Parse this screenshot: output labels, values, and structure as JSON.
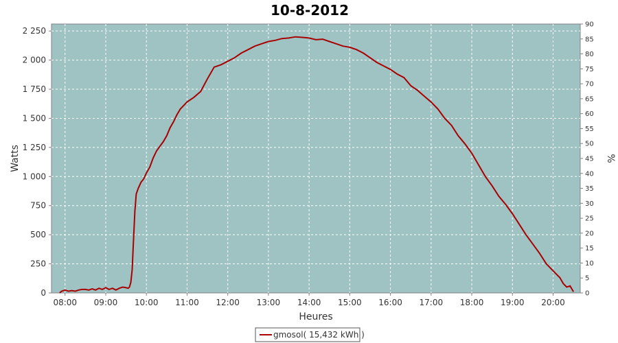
{
  "chart_data": {
    "type": "line",
    "title": "10-8-2012",
    "xlabel": "Heures",
    "ylabel": "Watts",
    "y2label": "%",
    "xticks": [
      "08:00",
      "09:00",
      "10:00",
      "11:00",
      "12:00",
      "13:00",
      "14:00",
      "15:00",
      "16:00",
      "17:00",
      "18:00",
      "19:00",
      "20:00"
    ],
    "yticks": [
      "0",
      "250",
      "500",
      "750",
      "1 000",
      "1 250",
      "1 500",
      "1 750",
      "2 000",
      "2 250"
    ],
    "y2ticks": [
      "0",
      "5",
      "10",
      "15",
      "20",
      "25",
      "30",
      "35",
      "40",
      "45",
      "50",
      "55",
      "60",
      "65",
      "70",
      "75",
      "80",
      "85",
      "90"
    ],
    "xlim": [
      "07:40",
      "20:40"
    ],
    "ylim": [
      0,
      2310
    ],
    "y2lim": [
      0,
      90
    ],
    "grid": true,
    "background_color": "#9fc3c3",
    "line_color": "#a80000",
    "legend_position": "bottom-center",
    "series": [
      {
        "name": "gmosol( 15,432 kWh )",
        "x": [
          "07:52",
          "07:55",
          "08:00",
          "08:05",
          "08:10",
          "08:15",
          "08:20",
          "08:25",
          "08:30",
          "08:35",
          "08:40",
          "08:45",
          "08:50",
          "08:55",
          "09:00",
          "09:05",
          "09:10",
          "09:15",
          "09:20",
          "09:25",
          "09:30",
          "09:33",
          "09:35",
          "09:37",
          "09:39",
          "09:41",
          "09:43",
          "09:45",
          "09:48",
          "09:52",
          "09:56",
          "10:00",
          "10:05",
          "10:10",
          "10:15",
          "10:20",
          "10:25",
          "10:30",
          "10:35",
          "10:40",
          "10:45",
          "10:50",
          "10:55",
          "11:00",
          "11:10",
          "11:20",
          "11:30",
          "11:40",
          "11:50",
          "12:00",
          "12:10",
          "12:20",
          "12:30",
          "12:40",
          "12:50",
          "13:00",
          "13:10",
          "13:20",
          "13:30",
          "13:40",
          "13:50",
          "14:00",
          "14:10",
          "14:20",
          "14:30",
          "14:40",
          "14:50",
          "15:00",
          "15:10",
          "15:20",
          "15:30",
          "15:40",
          "15:50",
          "16:00",
          "16:10",
          "16:20",
          "16:30",
          "16:40",
          "16:50",
          "17:00",
          "17:10",
          "17:20",
          "17:30",
          "17:40",
          "17:50",
          "18:00",
          "18:10",
          "18:20",
          "18:30",
          "18:40",
          "18:50",
          "19:00",
          "19:10",
          "19:20",
          "19:30",
          "19:40",
          "19:50",
          "20:00",
          "20:10",
          "20:15",
          "20:20",
          "20:25",
          "20:30"
        ],
        "y": [
          0,
          15,
          25,
          15,
          20,
          15,
          25,
          30,
          30,
          25,
          35,
          25,
          40,
          30,
          45,
          30,
          40,
          25,
          40,
          50,
          45,
          40,
          50,
          90,
          200,
          450,
          700,
          850,
          900,
          950,
          980,
          1030,
          1080,
          1160,
          1220,
          1260,
          1300,
          1350,
          1420,
          1470,
          1530,
          1580,
          1610,
          1640,
          1680,
          1730,
          1840,
          1940,
          1960,
          1990,
          2020,
          2060,
          2090,
          2120,
          2140,
          2160,
          2170,
          2185,
          2190,
          2200,
          2195,
          2190,
          2175,
          2180,
          2160,
          2140,
          2120,
          2110,
          2090,
          2060,
          2020,
          1980,
          1950,
          1920,
          1880,
          1850,
          1780,
          1740,
          1690,
          1640,
          1580,
          1500,
          1440,
          1350,
          1280,
          1200,
          1100,
          1000,
          920,
          830,
          760,
          680,
          590,
          500,
          420,
          340,
          250,
          190,
          130,
          80,
          50,
          60,
          10
        ]
      }
    ]
  }
}
